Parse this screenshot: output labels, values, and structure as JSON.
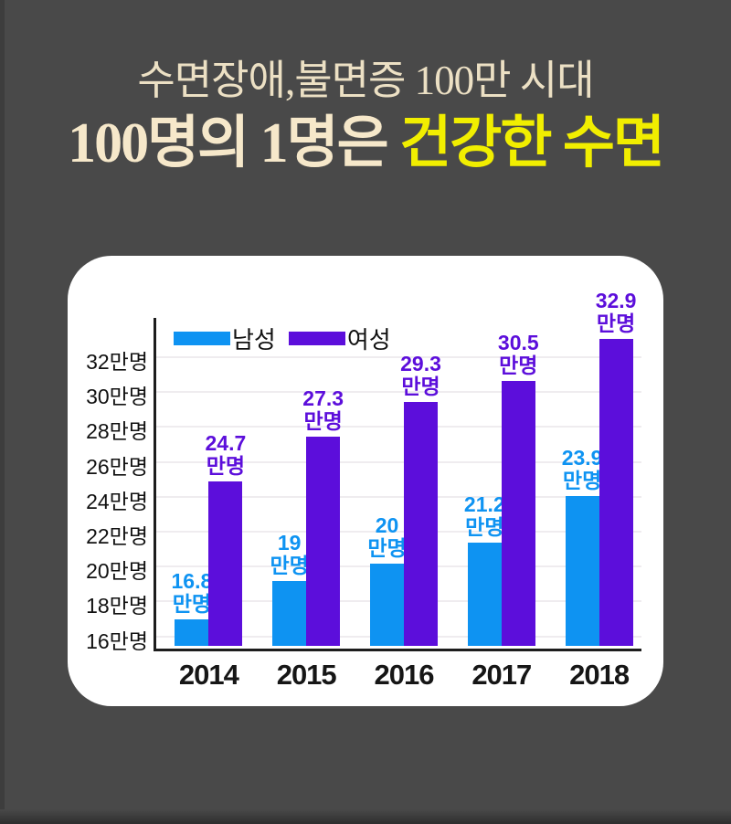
{
  "background": {
    "color": "#494949"
  },
  "header": {
    "subtitle": "수면장애,불면증 100만 시대",
    "subtitle_color": "#ece0c4",
    "title_prefix": "100명의 1명은 ",
    "title_highlight": "건강한 수면",
    "title_color": "#f6e8ca",
    "highlight_color": "#f1ee00"
  },
  "chart_data": {
    "type": "bar",
    "categories": [
      "2014",
      "2015",
      "2016",
      "2017",
      "2018"
    ],
    "series": [
      {
        "name": "남성",
        "color": "#0e93f2",
        "values": [
          16.8,
          19,
          20,
          21.2,
          23.9
        ]
      },
      {
        "name": "여성",
        "color": "#5c0edb",
        "values": [
          24.7,
          27.3,
          29.3,
          30.5,
          32.9
        ]
      }
    ],
    "unit": "만명",
    "value_label_suffix": "만명",
    "y_ticks": [
      {
        "value": 32,
        "label": "32만명"
      },
      {
        "value": 30,
        "label": "30만명"
      },
      {
        "value": 28,
        "label": "28만명"
      },
      {
        "value": 26,
        "label": "26만명"
      },
      {
        "value": 24,
        "label": "24만명"
      },
      {
        "value": 22,
        "label": "22만명"
      },
      {
        "value": 20,
        "label": "20만명"
      },
      {
        "value": 18,
        "label": "18만명"
      },
      {
        "value": 16,
        "label": "16만명"
      }
    ],
    "ylim": [
      15.3,
      34.25
    ],
    "grid": true,
    "legend_position": "top-left",
    "axis_color": "#1d1d1d",
    "grid_color": "#efecef",
    "tick_label_color": "#111111",
    "category_label_color": "#161616"
  }
}
